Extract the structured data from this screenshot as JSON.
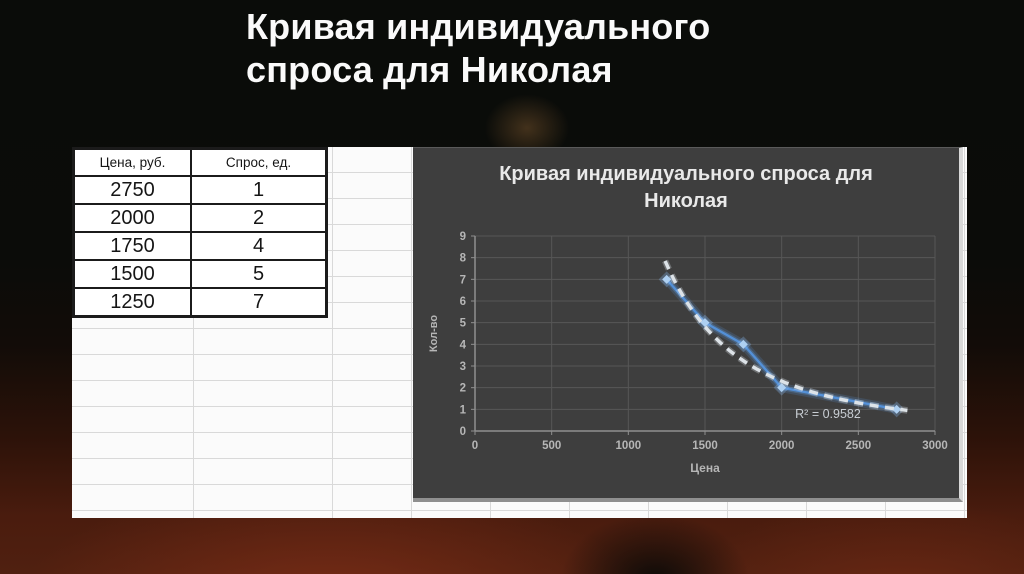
{
  "title": {
    "line1": "Кривая индивидуального",
    "line2": "спроса для Николая"
  },
  "table": {
    "columns": [
      "Цена, руб.",
      "Спрос, ед."
    ],
    "rows": [
      [
        "2750",
        "1"
      ],
      [
        "2000",
        "2"
      ],
      [
        "1750",
        "4"
      ],
      [
        "1500",
        "5"
      ],
      [
        "1250",
        "7"
      ]
    ]
  },
  "chart_data": {
    "type": "scatter",
    "title": "Кривая индивидуального спроса для Николая",
    "title_lines": [
      "Кривая индивидуального спроса для",
      "Николая"
    ],
    "xlabel": "Цена",
    "ylabel": "Кол-во",
    "x": [
      1250,
      1500,
      1750,
      2000,
      2750
    ],
    "y": [
      7,
      5,
      4,
      2,
      1
    ],
    "xlim": [
      0,
      3000
    ],
    "ylim": [
      0,
      9
    ],
    "x_ticks": [
      0,
      500,
      1000,
      1500,
      2000,
      2500,
      3000
    ],
    "y_ticks": [
      0,
      1,
      2,
      3,
      4,
      5,
      6,
      7,
      8,
      9
    ],
    "grid": true,
    "legend": false,
    "plot_bg": "#3e3e3e",
    "gridline_color": "#575757",
    "axis_color": "#8f8f8f",
    "tick_label_color": "#b6b6b6",
    "series_color": "#5390d8",
    "marker_color": "#aed0f2",
    "trendline": {
      "type": "power",
      "a": 684900000,
      "b": -2.567,
      "x_start": 1240,
      "x_end": 2820,
      "color": "#dde3e8",
      "dashed": true,
      "r2": 0.9582,
      "r2_text": "R² = 0.9582"
    }
  }
}
